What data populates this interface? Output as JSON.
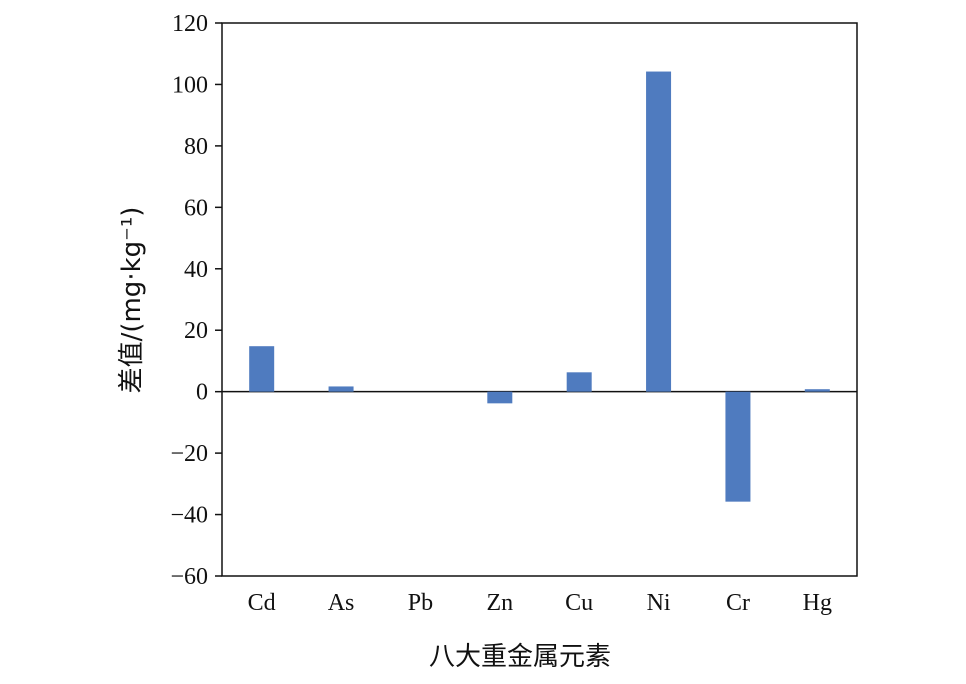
{
  "chart_data": {
    "type": "bar",
    "categories": [
      "Cd",
      "As",
      "Pb",
      "Zn",
      "Cu",
      "Ni",
      "Cr",
      "Hg"
    ],
    "values": [
      14.8,
      1.7,
      0.0,
      -3.8,
      6.3,
      104.2,
      -35.8,
      0.8
    ],
    "xlabel": "八大重金属元素",
    "ylabel": "差值/(mg·kg⁻¹)",
    "ylim": [
      -60,
      120
    ],
    "yticks": [
      120,
      100,
      80,
      60,
      40,
      20,
      0,
      -20,
      -40,
      -60
    ],
    "ytick_labels": [
      "120",
      "100",
      "80",
      "60",
      "40",
      "20",
      "0",
      "−20",
      "−40",
      "−60"
    ],
    "bar_color": "#4f7bbf",
    "grid": false,
    "legend": "none"
  }
}
